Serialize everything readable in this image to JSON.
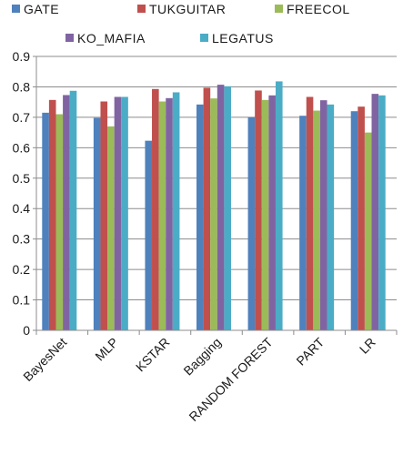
{
  "chart_data": {
    "type": "bar",
    "title": "",
    "xlabel": "",
    "ylabel": "",
    "ylim": [
      0,
      0.9
    ],
    "yticks": [
      "0",
      "0.1",
      "0.2",
      "0.3",
      "0.4",
      "0.5",
      "0.6",
      "0.7",
      "0.8",
      "0.9"
    ],
    "grid": true,
    "legend_position": "top",
    "categories": [
      "BayesNet",
      "MLP",
      "KSTAR",
      "Bagging",
      "RANDOM FOREST",
      "PART",
      "LR"
    ],
    "series": [
      {
        "name": "GATE",
        "color": "#4f81bd",
        "values": [
          0.715,
          0.698,
          0.623,
          0.742,
          0.7,
          0.705,
          0.72
        ]
      },
      {
        "name": "TUKGUITAR",
        "color": "#c0504d",
        "values": [
          0.757,
          0.752,
          0.793,
          0.797,
          0.788,
          0.767,
          0.735
        ]
      },
      {
        "name": "FREECOL",
        "color": "#9bbb59",
        "values": [
          0.71,
          0.67,
          0.752,
          0.762,
          0.757,
          0.722,
          0.65
        ]
      },
      {
        "name": "KO_MAFIA",
        "color": "#8064a2",
        "values": [
          0.773,
          0.767,
          0.763,
          0.807,
          0.772,
          0.756,
          0.777
        ]
      },
      {
        "name": "LEGATUS",
        "color": "#4bacc6",
        "values": [
          0.787,
          0.767,
          0.782,
          0.802,
          0.818,
          0.742,
          0.772
        ]
      }
    ]
  }
}
